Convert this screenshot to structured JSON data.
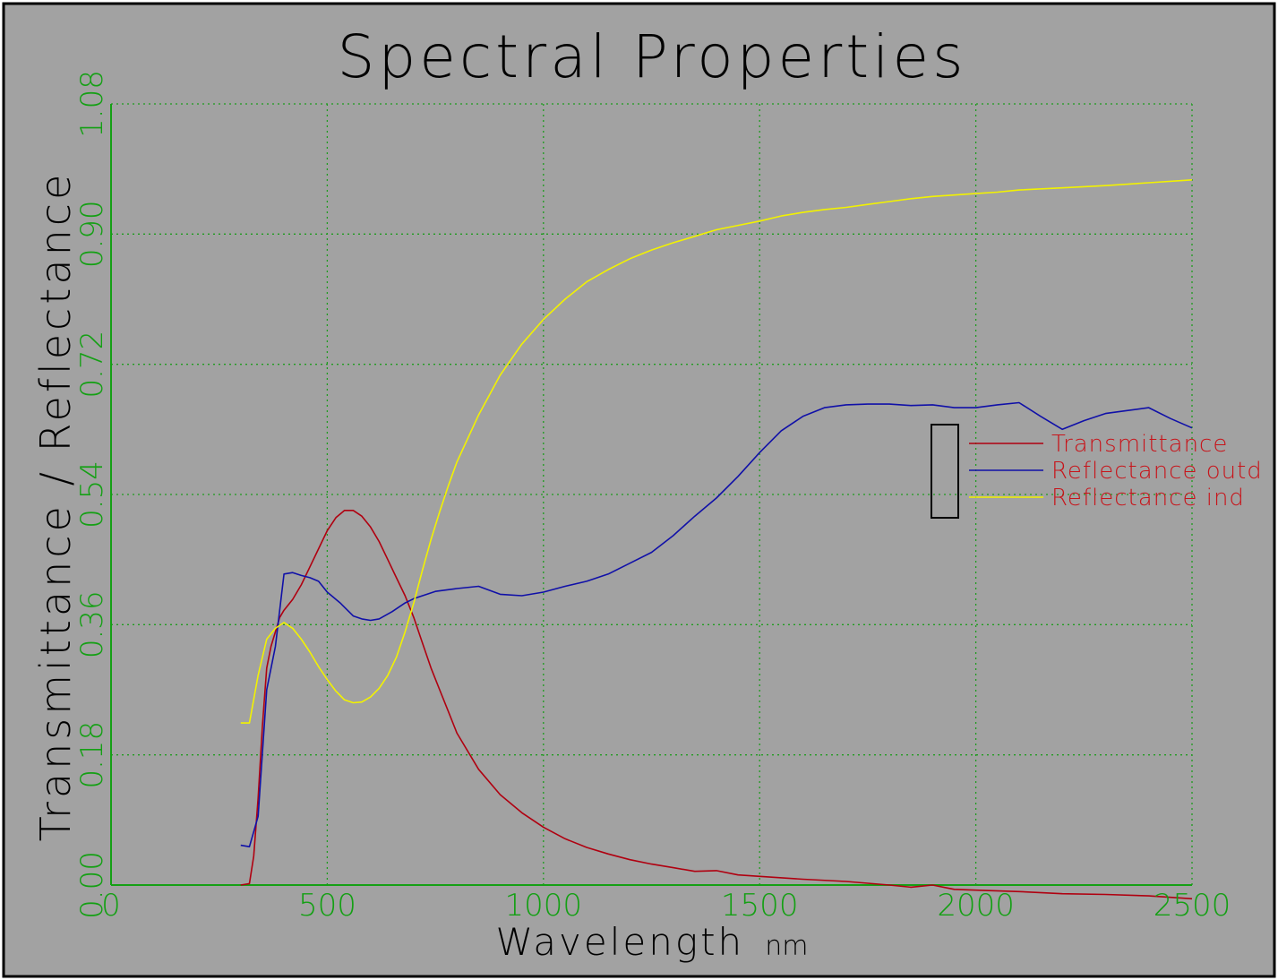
{
  "chart_data": {
    "type": "line",
    "title": "Spectral Properties",
    "xlabel": "Wavelength",
    "xunit": "nm",
    "ylabel": "Transmittance / Reflectance",
    "xlim": [
      0,
      2500
    ],
    "ylim": [
      0,
      1.08
    ],
    "x_ticks": [
      "0",
      "500",
      "1000",
      "1500",
      "2000",
      "2500"
    ],
    "y_ticks": [
      "0.00",
      "0.18",
      "0.36",
      "0.54",
      "0.72",
      "0.90",
      "1.08"
    ],
    "grid": true,
    "legend_position": "right",
    "colors": {
      "background": "#a2a2a2",
      "frame": "#000000",
      "axes": "#14a014",
      "grid": "#1e9b1e",
      "text": "#000000",
      "legend_text": "#c8141a"
    },
    "series": [
      {
        "name": "Transmittance",
        "color": "#b00010",
        "points": [
          [
            300,
            0.0
          ],
          [
            320,
            0.002
          ],
          [
            330,
            0.04
          ],
          [
            340,
            0.12
          ],
          [
            350,
            0.22
          ],
          [
            360,
            0.3
          ],
          [
            370,
            0.33
          ],
          [
            380,
            0.35
          ],
          [
            390,
            0.37
          ],
          [
            400,
            0.38
          ],
          [
            420,
            0.395
          ],
          [
            440,
            0.415
          ],
          [
            460,
            0.44
          ],
          [
            480,
            0.465
          ],
          [
            500,
            0.49
          ],
          [
            520,
            0.508
          ],
          [
            540,
            0.518
          ],
          [
            560,
            0.518
          ],
          [
            580,
            0.51
          ],
          [
            600,
            0.495
          ],
          [
            620,
            0.475
          ],
          [
            640,
            0.45
          ],
          [
            660,
            0.425
          ],
          [
            680,
            0.4
          ],
          [
            700,
            0.37
          ],
          [
            720,
            0.335
          ],
          [
            740,
            0.3
          ],
          [
            760,
            0.27
          ],
          [
            780,
            0.24
          ],
          [
            800,
            0.21
          ],
          [
            850,
            0.16
          ],
          [
            900,
            0.125
          ],
          [
            950,
            0.1
          ],
          [
            1000,
            0.08
          ],
          [
            1050,
            0.064
          ],
          [
            1100,
            0.052
          ],
          [
            1150,
            0.043
          ],
          [
            1200,
            0.035
          ],
          [
            1250,
            0.029
          ],
          [
            1300,
            0.024
          ],
          [
            1350,
            0.019
          ],
          [
            1400,
            0.02
          ],
          [
            1450,
            0.014
          ],
          [
            1500,
            0.012
          ],
          [
            1600,
            0.008
          ],
          [
            1700,
            0.005
          ],
          [
            1800,
            0.0
          ],
          [
            1850,
            -0.003
          ],
          [
            1900,
            0.0
          ],
          [
            1950,
            -0.006
          ],
          [
            2000,
            -0.007
          ],
          [
            2100,
            -0.009
          ],
          [
            2200,
            -0.012
          ],
          [
            2300,
            -0.013
          ],
          [
            2400,
            -0.015
          ],
          [
            2500,
            -0.019
          ]
        ]
      },
      {
        "name": "Reflectance outd",
        "color": "#1010a8",
        "points": [
          [
            300,
            0.055
          ],
          [
            320,
            0.053
          ],
          [
            340,
            0.095
          ],
          [
            360,
            0.27
          ],
          [
            380,
            0.33
          ],
          [
            400,
            0.43
          ],
          [
            420,
            0.432
          ],
          [
            440,
            0.428
          ],
          [
            460,
            0.425
          ],
          [
            480,
            0.42
          ],
          [
            500,
            0.405
          ],
          [
            530,
            0.39
          ],
          [
            560,
            0.372
          ],
          [
            580,
            0.368
          ],
          [
            600,
            0.366
          ],
          [
            620,
            0.368
          ],
          [
            650,
            0.378
          ],
          [
            680,
            0.39
          ],
          [
            700,
            0.396
          ],
          [
            750,
            0.406
          ],
          [
            800,
            0.41
          ],
          [
            850,
            0.413
          ],
          [
            900,
            0.402
          ],
          [
            950,
            0.4
          ],
          [
            1000,
            0.405
          ],
          [
            1050,
            0.413
          ],
          [
            1100,
            0.42
          ],
          [
            1150,
            0.43
          ],
          [
            1200,
            0.445
          ],
          [
            1250,
            0.46
          ],
          [
            1300,
            0.483
          ],
          [
            1350,
            0.51
          ],
          [
            1400,
            0.535
          ],
          [
            1450,
            0.565
          ],
          [
            1500,
            0.598
          ],
          [
            1550,
            0.628
          ],
          [
            1600,
            0.648
          ],
          [
            1650,
            0.66
          ],
          [
            1700,
            0.664
          ],
          [
            1750,
            0.665
          ],
          [
            1800,
            0.665
          ],
          [
            1850,
            0.663
          ],
          [
            1900,
            0.664
          ],
          [
            1950,
            0.66
          ],
          [
            2000,
            0.66
          ],
          [
            2050,
            0.664
          ],
          [
            2100,
            0.667
          ],
          [
            2150,
            0.648
          ],
          [
            2200,
            0.63
          ],
          [
            2250,
            0.642
          ],
          [
            2300,
            0.652
          ],
          [
            2350,
            0.656
          ],
          [
            2400,
            0.66
          ],
          [
            2450,
            0.645
          ],
          [
            2500,
            0.632
          ]
        ]
      },
      {
        "name": "Reflectance ind",
        "color": "#f2f200",
        "points": [
          [
            300,
            0.224
          ],
          [
            320,
            0.224
          ],
          [
            340,
            0.29
          ],
          [
            360,
            0.34
          ],
          [
            380,
            0.355
          ],
          [
            400,
            0.363
          ],
          [
            420,
            0.355
          ],
          [
            440,
            0.34
          ],
          [
            460,
            0.322
          ],
          [
            480,
            0.302
          ],
          [
            500,
            0.284
          ],
          [
            520,
            0.268
          ],
          [
            540,
            0.256
          ],
          [
            560,
            0.252
          ],
          [
            580,
            0.253
          ],
          [
            600,
            0.26
          ],
          [
            620,
            0.272
          ],
          [
            640,
            0.29
          ],
          [
            660,
            0.315
          ],
          [
            680,
            0.35
          ],
          [
            700,
            0.39
          ],
          [
            720,
            0.435
          ],
          [
            740,
            0.478
          ],
          [
            760,
            0.516
          ],
          [
            780,
            0.552
          ],
          [
            800,
            0.585
          ],
          [
            850,
            0.65
          ],
          [
            900,
            0.705
          ],
          [
            950,
            0.748
          ],
          [
            1000,
            0.782
          ],
          [
            1050,
            0.81
          ],
          [
            1100,
            0.834
          ],
          [
            1150,
            0.851
          ],
          [
            1200,
            0.866
          ],
          [
            1250,
            0.878
          ],
          [
            1300,
            0.888
          ],
          [
            1350,
            0.897
          ],
          [
            1400,
            0.906
          ],
          [
            1450,
            0.912
          ],
          [
            1500,
            0.918
          ],
          [
            1550,
            0.925
          ],
          [
            1600,
            0.93
          ],
          [
            1650,
            0.934
          ],
          [
            1700,
            0.937
          ],
          [
            1750,
            0.941
          ],
          [
            1800,
            0.945
          ],
          [
            1850,
            0.949
          ],
          [
            1900,
            0.952
          ],
          [
            1950,
            0.954
          ],
          [
            2000,
            0.956
          ],
          [
            2050,
            0.958
          ],
          [
            2100,
            0.961
          ],
          [
            2200,
            0.964
          ],
          [
            2300,
            0.967
          ],
          [
            2400,
            0.971
          ],
          [
            2500,
            0.975
          ]
        ]
      }
    ]
  }
}
